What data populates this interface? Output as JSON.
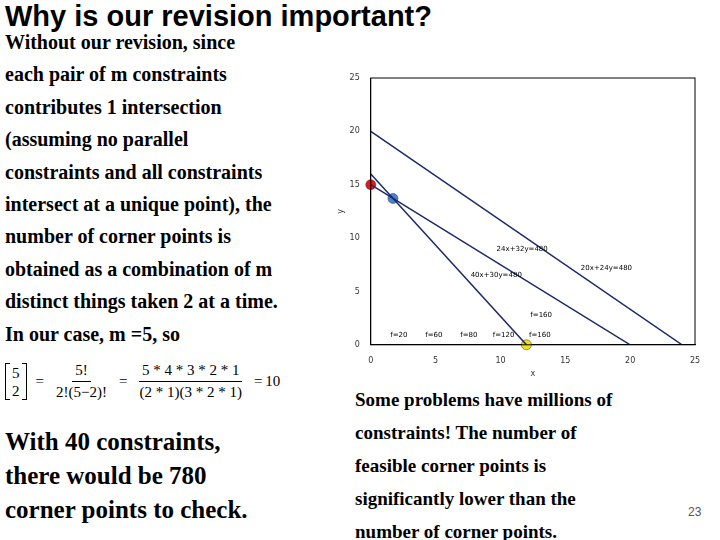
{
  "slide": {
    "title": "Why is our revision important?",
    "paragraph_lines": [
      "Without our revision, since",
      "each pair of m constraints",
      "contributes 1 intersection",
      "(assuming no parallel",
      "constraints and all constraints",
      "intersect at a unique point), the",
      "number of corner points is",
      "obtained as a combination of m",
      "distinct things taken 2 at a time.",
      "In our case, m =5, so"
    ],
    "formula": {
      "binom_top": "5",
      "binom_bottom": "2",
      "equals": "=",
      "fraction1_num": "5!",
      "fraction1_den": "2!(5−2)!",
      "fraction2_num": "5 * 4 * 3 * 2 * 1",
      "fraction2_den": "(2 * 1)(3 * 2 * 1)",
      "result": "10"
    },
    "left_note_lines": [
      "With 40 constraints,",
      "there would be 780",
      "corner points to check."
    ],
    "right_note_lines": [
      "Some problems have millions of",
      "constraints! The number of",
      "feasible corner points is",
      "significantly lower than the",
      "number of corner points."
    ],
    "page_number": "23"
  },
  "chart_data": {
    "type": "line",
    "xlabel": "x",
    "ylabel": "y",
    "xlim": [
      0,
      25
    ],
    "ylim": [
      0,
      25
    ],
    "xticks": [
      0,
      5,
      10,
      15,
      20,
      25
    ],
    "yticks": [
      0,
      5,
      10,
      15,
      20,
      25
    ],
    "grid": false,
    "series": [
      {
        "color": "#1c2a6b",
        "x": [
          0,
          24
        ],
        "values": [
          20,
          0
        ]
      },
      {
        "color": "#1c2a6b",
        "x": [
          0,
          20
        ],
        "values": [
          15,
          0
        ]
      },
      {
        "color": "#1c2a6b",
        "x": [
          0,
          12
        ],
        "values": [
          16,
          0
        ]
      },
      {
        "type": "scatter",
        "marker": "circle",
        "x": [
          0,
          1.71,
          12
        ],
        "values": [
          15,
          13.71,
          0
        ],
        "colors": [
          "#e8141c",
          "#4a7fd8",
          "#f2e21a"
        ]
      }
    ],
    "annotations": [
      {
        "text": "24x+32y=480",
        "x": 9.7,
        "y": 9.0
      },
      {
        "text": "40x+30y=480",
        "x": 7.7,
        "y": 6.5
      },
      {
        "text": "20x+24y=480",
        "x": 16.2,
        "y": 7.2
      },
      {
        "text": "f=160",
        "x": 12.3,
        "y": 2.8
      },
      {
        "text": "f=20",
        "x": 1.5,
        "y": 0.9
      },
      {
        "text": "f=60",
        "x": 4.2,
        "y": 0.9
      },
      {
        "text": "f=80",
        "x": 6.9,
        "y": 0.9
      },
      {
        "text": "f=120",
        "x": 9.4,
        "y": 0.9
      },
      {
        "text": "f=160",
        "x": 12.2,
        "y": 0.9
      }
    ]
  }
}
